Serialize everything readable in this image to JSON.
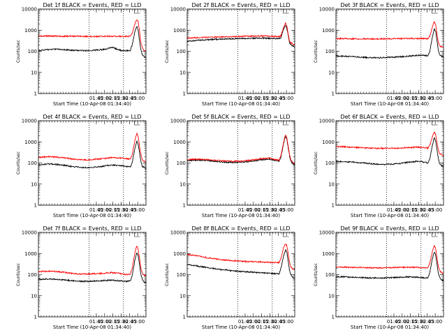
{
  "figure": {
    "x_tick_labels": [
      "01:45",
      "02:00",
      "02:15",
      "02:30",
      "02:45",
      "03:00"
    ],
    "x_tick_values": [
      6300,
      7200,
      8100,
      9000,
      9900,
      10800
    ],
    "x_range_seconds_after_0134": [
      0,
      11700
    ],
    "y_range": [
      1,
      10000
    ],
    "y_scale": "log",
    "y_tick_labels": [
      "1",
      "10",
      "100",
      "1000",
      "10000"
    ],
    "colors": {
      "events": "#000000",
      "lld": "#ff0000",
      "axes": "#000000"
    },
    "dotted_verticals_x": [
      5500,
      9250
    ]
  },
  "chart_data": [
    {
      "type": "line",
      "title": "Det 1f BLACK = Events, RED = LLD",
      "xlabel": "Start Time (10-Apr-08 01:34:40)",
      "ylabel": "Counts/sec",
      "series": [
        {
          "name": "Events",
          "color": "#000000",
          "x": [
            0,
            1000,
            2000,
            3000,
            4000,
            5000,
            6000,
            7000,
            7500,
            8000,
            8500,
            9000,
            9500,
            10000,
            10200,
            10500,
            10700,
            10850,
            11000,
            11150,
            11300,
            11500,
            11700
          ],
          "y": [
            110,
            120,
            125,
            118,
            110,
            108,
            112,
            120,
            135,
            160,
            130,
            110,
            105,
            110,
            200,
            900,
            1500,
            1000,
            300,
            120,
            70,
            55,
            50
          ]
        },
        {
          "name": "LLD",
          "color": "#ff0000",
          "x": [
            0,
            1000,
            2000,
            3000,
            4000,
            5000,
            6000,
            7000,
            8000,
            9000,
            9500,
            10000,
            10200,
            10500,
            10700,
            10850,
            11000,
            11150,
            11300,
            11500,
            11700
          ],
          "y": [
            520,
            530,
            525,
            515,
            510,
            505,
            500,
            510,
            520,
            505,
            500,
            520,
            700,
            2000,
            3200,
            2500,
            900,
            250,
            150,
            110,
            100
          ]
        }
      ]
    },
    {
      "type": "line",
      "title": "Det 2f BLACK = Events, RED = LLD",
      "xlabel": "Start Time (10-Apr-08 01:34:40)",
      "ylabel": "Counts/sec",
      "series": [
        {
          "name": "Events",
          "color": "#000000",
          "x": [
            0,
            1000,
            2000,
            3000,
            4000,
            5000,
            6000,
            7000,
            8000,
            9000,
            10000,
            10200,
            10500,
            10700,
            10850,
            11000,
            11150,
            11300,
            11500,
            11700
          ],
          "y": [
            300,
            330,
            350,
            370,
            380,
            390,
            400,
            410,
            420,
            410,
            400,
            450,
            1200,
            1800,
            1200,
            500,
            250,
            200,
            180,
            150
          ]
        },
        {
          "name": "LLD",
          "color": "#ff0000",
          "x": [
            0,
            1000,
            2000,
            3000,
            4000,
            5000,
            6000,
            7000,
            8000,
            9000,
            10000,
            10200,
            10500,
            10700,
            10850,
            11000,
            11150,
            11300,
            11500,
            11700
          ],
          "y": [
            420,
            440,
            460,
            480,
            490,
            500,
            510,
            520,
            530,
            520,
            500,
            550,
            1400,
            2200,
            1500,
            600,
            300,
            250,
            220,
            200
          ]
        }
      ]
    },
    {
      "type": "line",
      "title": "Det 3f BLACK = Events, RED = LLD",
      "xlabel": "Start Time (10-Apr-08 01:34:40)",
      "ylabel": "Counts/sec",
      "series": [
        {
          "name": "Events",
          "color": "#000000",
          "x": [
            0,
            1000,
            2000,
            3000,
            4000,
            5000,
            6000,
            7000,
            8000,
            9000,
            10000,
            10200,
            10500,
            10700,
            10850,
            11000,
            11150,
            11300,
            11500,
            11700
          ],
          "y": [
            60,
            58,
            55,
            52,
            50,
            50,
            52,
            55,
            60,
            65,
            62,
            100,
            500,
            1200,
            900,
            300,
            100,
            70,
            60,
            55
          ]
        },
        {
          "name": "LLD",
          "color": "#ff0000",
          "x": [
            0,
            1000,
            2000,
            3000,
            4000,
            5000,
            6000,
            7000,
            8000,
            9000,
            10000,
            10200,
            10500,
            10700,
            10850,
            11000,
            11150,
            11300,
            11500,
            11700
          ],
          "y": [
            400,
            395,
            390,
            385,
            385,
            390,
            395,
            400,
            405,
            400,
            400,
            500,
            1500,
            2500,
            1800,
            600,
            250,
            180,
            160,
            150
          ]
        }
      ]
    },
    {
      "type": "line",
      "title": "Det 4f BLACK = Events, RED = LLD",
      "xlabel": "Start Time (10-Apr-08 01:34:40)",
      "ylabel": "Counts/sec",
      "series": [
        {
          "name": "Events",
          "color": "#000000",
          "x": [
            0,
            1000,
            2000,
            3000,
            4000,
            5000,
            6000,
            7000,
            8000,
            9000,
            9500,
            10000,
            10200,
            10500,
            10700,
            10850,
            11000,
            11150,
            11300,
            11500,
            11700
          ],
          "y": [
            80,
            90,
            85,
            75,
            65,
            60,
            62,
            70,
            80,
            75,
            70,
            65,
            100,
            500,
            1100,
            800,
            300,
            120,
            70,
            60,
            55
          ]
        },
        {
          "name": "LLD",
          "color": "#ff0000",
          "x": [
            0,
            1000,
            2000,
            3000,
            4000,
            5000,
            6000,
            7000,
            8000,
            9000,
            9500,
            10000,
            10200,
            10500,
            10700,
            10850,
            11000,
            11150,
            11300,
            11500,
            11700
          ],
          "y": [
            180,
            200,
            190,
            170,
            150,
            140,
            145,
            160,
            180,
            170,
            160,
            150,
            250,
            1200,
            2600,
            1800,
            600,
            250,
            150,
            120,
            110
          ]
        }
      ]
    },
    {
      "type": "line",
      "title": "Det 5f BLACK = Events, RED = LLD",
      "xlabel": "Start Time (10-Apr-08 01:34:40)",
      "ylabel": "Counts/sec",
      "series": [
        {
          "name": "Events",
          "color": "#000000",
          "x": [
            0,
            1000,
            2000,
            3000,
            4000,
            5000,
            6000,
            7000,
            8000,
            9000,
            9500,
            10000,
            10200,
            10500,
            10700,
            10850,
            11000,
            11150,
            11300,
            11500,
            11700
          ],
          "y": [
            130,
            135,
            130,
            120,
            110,
            105,
            110,
            120,
            140,
            150,
            135,
            120,
            200,
            900,
            1800,
            1300,
            500,
            200,
            120,
            90,
            80
          ]
        },
        {
          "name": "LLD",
          "color": "#ff0000",
          "x": [
            0,
            1000,
            2000,
            3000,
            4000,
            5000,
            6000,
            7000,
            8000,
            9000,
            9500,
            10000,
            10200,
            10500,
            10700,
            10850,
            11000,
            11150,
            11300,
            11500,
            11700
          ],
          "y": [
            145,
            150,
            145,
            135,
            125,
            120,
            125,
            135,
            160,
            170,
            150,
            135,
            230,
            1000,
            2200,
            1500,
            600,
            230,
            140,
            105,
            95
          ]
        }
      ]
    },
    {
      "type": "line",
      "title": "Det 6f BLACK = Events, RED = LLD",
      "xlabel": "Start Time (10-Apr-08 01:34:40)",
      "ylabel": "Counts/sec",
      "series": [
        {
          "name": "Events",
          "color": "#000000",
          "x": [
            0,
            1000,
            2000,
            3000,
            4000,
            5000,
            6000,
            7000,
            8000,
            9000,
            9500,
            10000,
            10200,
            10500,
            10700,
            10850,
            11000,
            11150,
            11300,
            11500,
            11700
          ],
          "y": [
            120,
            115,
            110,
            100,
            90,
            85,
            88,
            95,
            110,
            120,
            110,
            100,
            150,
            700,
            1600,
            1100,
            400,
            150,
            90,
            75,
            70
          ]
        },
        {
          "name": "LLD",
          "color": "#ff0000",
          "x": [
            0,
            1000,
            2000,
            3000,
            4000,
            5000,
            6000,
            7000,
            8000,
            9000,
            9500,
            10000,
            10200,
            10500,
            10700,
            10850,
            11000,
            11150,
            11300,
            11500,
            11700
          ],
          "y": [
            600,
            580,
            550,
            520,
            500,
            490,
            495,
            510,
            540,
            560,
            530,
            510,
            700,
            1800,
            3000,
            2200,
            900,
            400,
            280,
            240,
            220
          ]
        }
      ]
    },
    {
      "type": "line",
      "title": "Det 7f BLACK = Events, RED = LLD",
      "xlabel": "Start Time (10-Apr-08 01:34:40)",
      "ylabel": "Counts/sec",
      "series": [
        {
          "name": "Events",
          "color": "#000000",
          "x": [
            0,
            1000,
            2000,
            3000,
            4000,
            5000,
            6000,
            7000,
            8000,
            9000,
            9500,
            10000,
            10200,
            10500,
            10700,
            10850,
            11000,
            11150,
            11300,
            11500,
            11700
          ],
          "y": [
            60,
            62,
            60,
            55,
            50,
            48,
            50,
            52,
            55,
            50,
            48,
            50,
            90,
            500,
            1100,
            800,
            300,
            100,
            60,
            45,
            40
          ]
        },
        {
          "name": "LLD",
          "color": "#ff0000",
          "x": [
            0,
            1000,
            2000,
            3000,
            4000,
            5000,
            6000,
            7000,
            8000,
            9000,
            9500,
            10000,
            10200,
            10500,
            10700,
            10850,
            11000,
            11150,
            11300,
            11500,
            11700
          ],
          "y": [
            140,
            145,
            140,
            125,
            110,
            105,
            110,
            115,
            125,
            110,
            100,
            105,
            200,
            1100,
            2300,
            1600,
            600,
            200,
            120,
            95,
            90
          ]
        }
      ]
    },
    {
      "type": "line",
      "title": "Det 8f BLACK = Events, RED = LLD",
      "xlabel": "Start Time (10-Apr-08 01:34:40)",
      "ylabel": "Counts/sec",
      "series": [
        {
          "name": "Events",
          "color": "#000000",
          "x": [
            0,
            1000,
            2000,
            3000,
            4000,
            5000,
            6000,
            7000,
            8000,
            9000,
            9500,
            10000,
            10200,
            10500,
            10700,
            10850,
            11000,
            11150,
            11300,
            11500,
            11700
          ],
          "y": [
            300,
            260,
            220,
            190,
            170,
            150,
            140,
            130,
            125,
            115,
            110,
            110,
            200,
            800,
            1500,
            1100,
            400,
            150,
            90,
            70,
            65
          ]
        },
        {
          "name": "LLD",
          "color": "#ff0000",
          "x": [
            0,
            1000,
            2000,
            3000,
            4000,
            5000,
            6000,
            7000,
            8000,
            9000,
            9500,
            10000,
            10200,
            10500,
            10700,
            10850,
            11000,
            11150,
            11300,
            11500,
            11700
          ],
          "y": [
            900,
            780,
            650,
            560,
            500,
            460,
            430,
            410,
            400,
            380,
            370,
            380,
            600,
            2000,
            3000,
            2300,
            900,
            350,
            220,
            180,
            170
          ]
        }
      ]
    },
    {
      "type": "line",
      "title": "Det 9f BLACK = Events, RED = LLD",
      "xlabel": "Start Time (10-Apr-08 01:34:40)",
      "ylabel": "Counts/sec",
      "series": [
        {
          "name": "Events",
          "color": "#000000",
          "x": [
            0,
            1000,
            2000,
            3000,
            4000,
            5000,
            6000,
            7000,
            8000,
            9000,
            9500,
            10000,
            10200,
            10500,
            10700,
            10850,
            11000,
            11150,
            11300,
            11500,
            11700
          ],
          "y": [
            80,
            78,
            75,
            72,
            70,
            70,
            72,
            75,
            78,
            75,
            72,
            72,
            120,
            600,
            1200,
            850,
            300,
            110,
            70,
            55,
            50
          ]
        },
        {
          "name": "LLD",
          "color": "#ff0000",
          "x": [
            0,
            1000,
            2000,
            3000,
            4000,
            5000,
            6000,
            7000,
            8000,
            9000,
            9500,
            10000,
            10200,
            10500,
            10700,
            10850,
            11000,
            11150,
            11300,
            11500,
            11700
          ],
          "y": [
            230,
            225,
            220,
            215,
            210,
            210,
            215,
            220,
            225,
            220,
            215,
            215,
            350,
            1300,
            2400,
            1700,
            600,
            230,
            150,
            120,
            110
          ]
        }
      ]
    }
  ]
}
